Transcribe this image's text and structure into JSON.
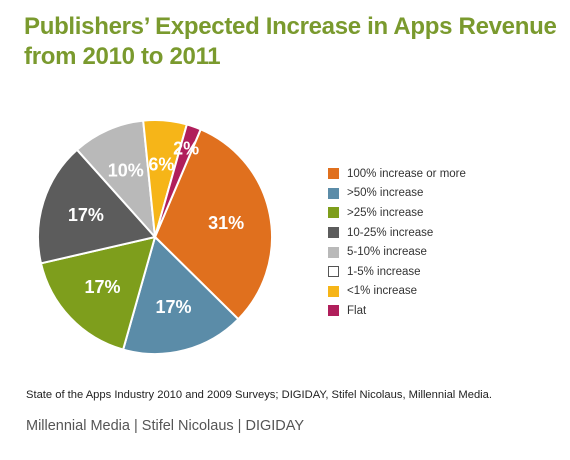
{
  "chart_data": {
    "type": "pie",
    "title_line1": "Publishers’ Expected Increase in Apps Revenue",
    "title_line2": "from 2010 to 2011",
    "categories": [
      "100% increase or more",
      ">50% increase",
      ">25% increase",
      "10-25% increase",
      "5-10% increase",
      "1-5% increase",
      "<1% increase",
      "Flat"
    ],
    "values": [
      31,
      17,
      17,
      17,
      10,
      0,
      6,
      2
    ],
    "labels": [
      "31%",
      "17%",
      "17%",
      "17%",
      "10%",
      "",
      "6%",
      "2%"
    ],
    "colors": [
      "#e0701e",
      "#5b8ca8",
      "#7e9e1c",
      "#5c5c5c",
      "#b9b9b9",
      "#ffffff",
      "#f6b518",
      "#b01f5b"
    ],
    "legend_position": "right"
  },
  "source": "State of the Apps Industry 2010 and 2009 Surveys; DIGIDAY, Stifel Nicolaus, Millennial Media.",
  "footer": "Millennial Media | Stifel Nicolaus | DIGIDAY"
}
